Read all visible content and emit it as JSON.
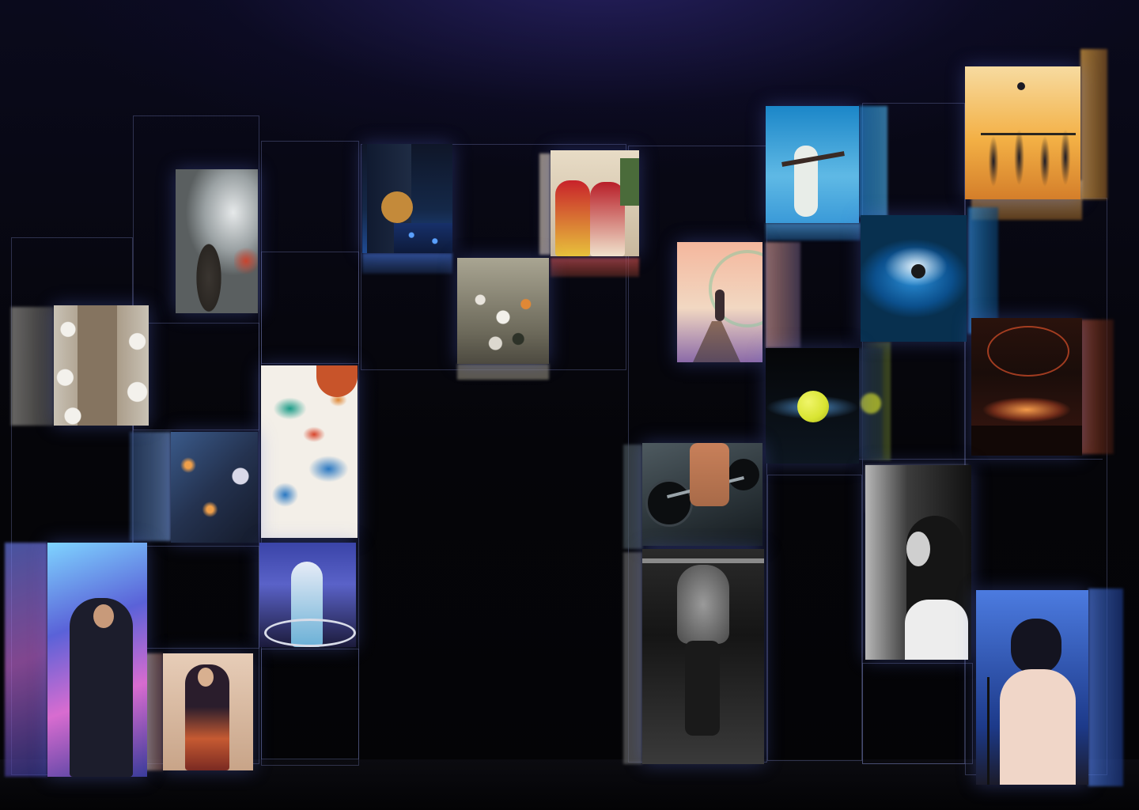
{
  "scene": {
    "description_colors": {
      "background": "#05050c",
      "stage_glow": "#2a2470",
      "frame_line": "#6c75b8"
    }
  },
  "panels": [
    {
      "id": "concert-singer",
      "subject": "singer-smoke",
      "palette": [
        "#cfd3d6",
        "#7e8688",
        "#3d3a36",
        "#b1432f"
      ]
    },
    {
      "id": "guitarist",
      "subject": "guitarist-stage",
      "palette": [
        "#1b2a4a",
        "#2f5aa8",
        "#0c1020",
        "#e2b45a"
      ]
    },
    {
      "id": "costume-festival",
      "subject": "women-costume",
      "palette": [
        "#f2e7d8",
        "#c8222a",
        "#f0c73c",
        "#4a6b3a"
      ]
    },
    {
      "id": "street-parade",
      "subject": "parade-crowd",
      "palette": [
        "#b8b2a2",
        "#6d6a5b",
        "#e08836",
        "#2d3228"
      ]
    },
    {
      "id": "dinner-table",
      "subject": "banquet-table",
      "palette": [
        "#e9e6e0",
        "#9b8a74",
        "#4a463f",
        "#c9c2b5"
      ]
    },
    {
      "id": "paint-palette",
      "subject": "paint-art",
      "palette": [
        "#f3efe8",
        "#2a78c2",
        "#1b9c88",
        "#d8452b"
      ]
    },
    {
      "id": "candle-dinner",
      "subject": "dinner-night",
      "palette": [
        "#24324f",
        "#5b7fb4",
        "#d89446",
        "#141a2a"
      ]
    },
    {
      "id": "dancer-performer",
      "subject": "ribbon-dancer",
      "palette": [
        "#4a4fa8",
        "#e7ecf7",
        "#6ab0d6",
        "#1c1b3b"
      ]
    },
    {
      "id": "man-singing",
      "subject": "man-microphone",
      "palette": [
        "#5a62d8",
        "#d86cd0",
        "#1c1d2c",
        "#7fd4ff"
      ]
    },
    {
      "id": "woman-courtyard",
      "subject": "woman-saree",
      "palette": [
        "#e7cdb8",
        "#7a2a22",
        "#c65a32",
        "#2a1d2c"
      ]
    },
    {
      "id": "dancer-pool",
      "subject": "pool-dancer",
      "palette": [
        "#1b86c8",
        "#5fb9e5",
        "#e8ede8",
        "#173c6a"
      ]
    },
    {
      "id": "beach-volleyball",
      "subject": "volleyball-sunset",
      "palette": [
        "#f3b045",
        "#f7dba0",
        "#1c1a24",
        "#d47e2a"
      ]
    },
    {
      "id": "pier-dancer",
      "subject": "dancer-pier",
      "palette": [
        "#f4b79d",
        "#8b6aa8",
        "#5b4a5f",
        "#f2d8c2"
      ]
    },
    {
      "id": "swimmer",
      "subject": "butterfly-swimmer",
      "palette": [
        "#0b4f8c",
        "#2a8ed6",
        "#e7f3fb",
        "#08304f"
      ]
    },
    {
      "id": "tennis-ball",
      "subject": "tennis-ball",
      "palette": [
        "#050608",
        "#1b2a3a",
        "#d8e431",
        "#4a88c0"
      ]
    },
    {
      "id": "concert-lights",
      "subject": "arena-crowd",
      "palette": [
        "#1a0d0a",
        "#d8502a",
        "#f39a4a",
        "#3b1710"
      ]
    },
    {
      "id": "weightlifting",
      "subject": "barbell-lift",
      "palette": [
        "#2a3338",
        "#4e5a60",
        "#f3b55a",
        "#141a1e"
      ]
    },
    {
      "id": "pull-up",
      "subject": "athlete-pullup",
      "palette": [
        "#151515",
        "#8a8a8a",
        "#d8d8d8",
        "#3a3a3a"
      ]
    },
    {
      "id": "woman-profile",
      "subject": "woman-bw",
      "palette": [
        "#111111",
        "#b8b8b8",
        "#ededed",
        "#3c3c3c"
      ]
    },
    {
      "id": "singer-stage",
      "subject": "woman-microphone",
      "palette": [
        "#1d3a8a",
        "#4c7be0",
        "#f0d6c8",
        "#1b1b2a"
      ]
    }
  ]
}
